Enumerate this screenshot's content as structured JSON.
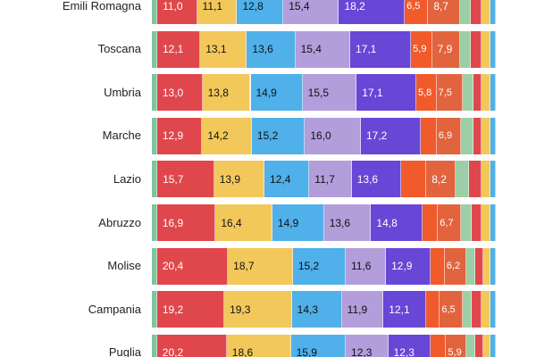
{
  "chart_data": {
    "type": "bar",
    "orientation": "horizontal",
    "stacked": true,
    "normalized": true,
    "title": "",
    "categories": [
      "Emili Romagna",
      "Toscana",
      "Umbria",
      "Marche",
      "Lazio",
      "Abruzzo",
      "Molise",
      "Campania",
      "Puglia"
    ],
    "series": [
      {
        "color": "#7fc49b",
        "values": [
          1.5,
          1.5,
          1.5,
          1.5,
          1.5,
          1.5,
          1.5,
          1.5,
          1.5
        ],
        "labels": [
          "",
          "",
          "",
          "",
          "",
          "",
          "",
          "",
          ""
        ]
      },
      {
        "color": "#e0474c",
        "values": [
          11.0,
          12.1,
          13.0,
          12.9,
          15.7,
          16.9,
          20.4,
          19.2,
          20.2
        ],
        "labels": [
          "11,0",
          "12,1",
          "13,0",
          "12,9",
          "15,7",
          "16,9",
          "20,4",
          "19,2",
          "20,2"
        ],
        "text_color": "#ffffff"
      },
      {
        "color": "#f3c85b",
        "values": [
          11.1,
          13.1,
          13.8,
          14.2,
          13.9,
          16.4,
          18.7,
          19.3,
          18.6
        ],
        "labels": [
          "11,1",
          "13,1",
          "13,8",
          "14,2",
          "13,9",
          "16,4",
          "18,7",
          "19,3",
          "18,6"
        ],
        "text_color": "#111111"
      },
      {
        "color": "#4fb0ea",
        "values": [
          12.8,
          13.6,
          14.9,
          15.2,
          12.4,
          14.9,
          15.2,
          14.3,
          15.9
        ],
        "labels": [
          "12,8",
          "13,6",
          "14,9",
          "15,2",
          "12,4",
          "14,9",
          "15,2",
          "14,3",
          "15,9"
        ],
        "text_color": "#111111"
      },
      {
        "color": "#b39ddb",
        "values": [
          15.4,
          15.4,
          15.5,
          16.0,
          11.7,
          13.6,
          11.6,
          11.9,
          12.3
        ],
        "labels": [
          "15,4",
          "15,4",
          "15,5",
          "16,0",
          "11,7",
          "13,6",
          "11,6",
          "11,9",
          "12,3"
        ],
        "text_color": "#111111"
      },
      {
        "color": "#6846d6",
        "values": [
          18.2,
          17.1,
          17.1,
          17.2,
          13.6,
          14.8,
          12.9,
          12.1,
          12.3
        ],
        "labels": [
          "18,2",
          "17,1",
          "17,1",
          "17,2",
          "13,6",
          "14,8",
          "12,9",
          "12,1",
          "12,3"
        ],
        "text_color": "#ffffff"
      },
      {
        "color": "#f15a2b",
        "values": [
          6.5,
          5.9,
          5.8,
          4.5,
          7.0,
          4.5,
          4.0,
          4.0,
          4.5
        ],
        "labels": [
          "6,5",
          "5,9",
          "5,8",
          "",
          "",
          "",
          "",
          "",
          ""
        ],
        "text_color": "#ffffff"
      },
      {
        "color": "#e2643e",
        "values": [
          8.7,
          7.9,
          7.5,
          6.9,
          8.2,
          6.7,
          6.2,
          6.5,
          5.9
        ],
        "labels": [
          "8,7",
          "7,9",
          "7,5",
          "6,9",
          "8,2",
          "6,7",
          "6,2",
          "6,5",
          "5,9"
        ],
        "text_color": "#ffffff"
      },
      {
        "color": "#9ccfa6",
        "values": [
          3.0,
          3.0,
          3.0,
          3.5,
          3.5,
          3.0,
          2.5,
          2.5,
          2.5
        ],
        "labels": [
          "",
          "",
          "",
          "",
          "",
          "",
          "",
          "",
          ""
        ]
      },
      {
        "color": "#e0474c",
        "values": [
          3.0,
          3.0,
          2.5,
          2.5,
          3.5,
          3.0,
          2.5,
          3.0,
          2.5
        ],
        "labels": [
          "",
          "",
          "",
          "",
          "",
          "",
          "",
          "",
          ""
        ]
      },
      {
        "color": "#f3c85b",
        "values": [
          2.5,
          2.5,
          2.5,
          2.5,
          2.5,
          2.5,
          2.0,
          2.5,
          2.0
        ],
        "labels": [
          "",
          "",
          "",
          "",
          "",
          "",
          "",
          "",
          ""
        ]
      },
      {
        "color": "#4fb0ea",
        "values": [
          1.5,
          1.5,
          1.5,
          1.5,
          1.5,
          1.5,
          1.5,
          1.5,
          1.5
        ],
        "labels": [
          "",
          "",
          "",
          "",
          "",
          "",
          "",
          "",
          ""
        ]
      }
    ]
  }
}
